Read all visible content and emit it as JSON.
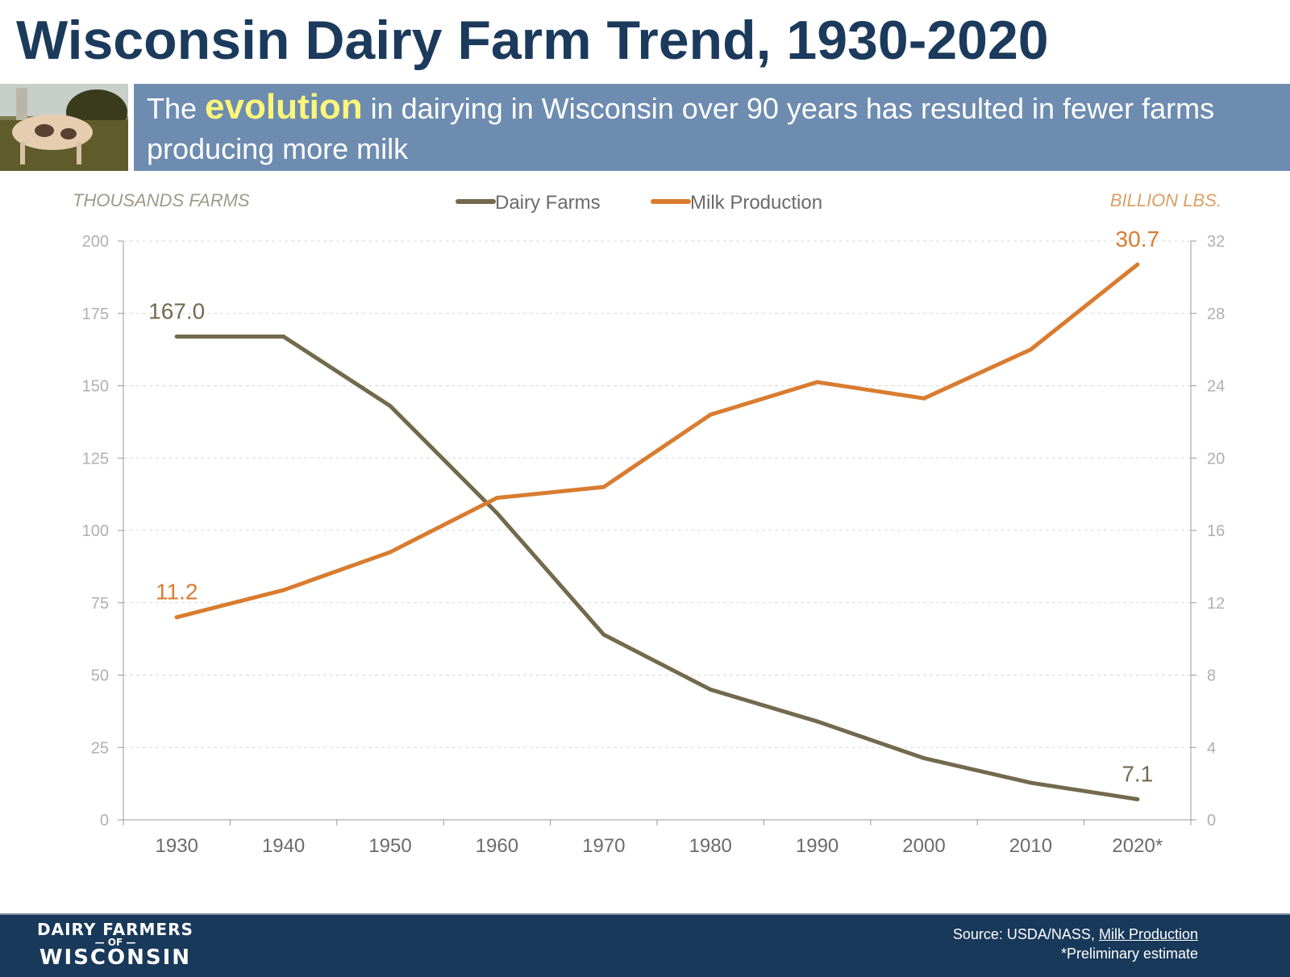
{
  "title": "Wisconsin Dairy Farm Trend, 1930-2020",
  "banner": {
    "prefix": "The",
    "highlight": "evolution",
    "suffix": "in dairying in Wisconsin over 90 years has resulted in fewer farms producing more milk",
    "highlight_color": "#fdf67a"
  },
  "footer": {
    "logo_text": "DAIRY FARMERS OF WISCONSIN",
    "source_prefix": "Source: USDA/NASS,",
    "source_link": "Milk Production",
    "note": "*Preliminary estimate"
  },
  "chart_data": {
    "type": "line",
    "categories": [
      "1930",
      "1940",
      "1950",
      "1960",
      "1970",
      "1980",
      "1990",
      "2000",
      "2010",
      "2020*"
    ],
    "ylabel_left": "THOUSANDS FARMS",
    "ylabel_right": "BILLION LBS.",
    "ylim_left": [
      0,
      200
    ],
    "yticks_left": [
      0,
      25,
      50,
      75,
      100,
      125,
      150,
      175,
      200
    ],
    "ylim_right": [
      0,
      32
    ],
    "yticks_right": [
      0,
      4,
      8,
      12,
      16,
      20,
      24,
      28,
      32
    ],
    "grid": true,
    "legend": "top-center",
    "series": [
      {
        "name": "Dairy Farms",
        "axis": "left",
        "color": "#736a4e",
        "values": [
          167.0,
          167.0,
          143,
          106,
          64,
          45,
          34,
          21.3,
          12.8,
          7.1
        ],
        "labels": [
          {
            "index": 0,
            "text": "167.0"
          },
          {
            "index": 9,
            "text": "7.1"
          }
        ]
      },
      {
        "name": "Milk Production",
        "axis": "right",
        "color": "#d97c30",
        "values": [
          11.2,
          12.7,
          14.8,
          17.8,
          18.4,
          22.4,
          24.2,
          23.3,
          26.0,
          30.7
        ],
        "labels": [
          {
            "index": 0,
            "text": "11.2"
          },
          {
            "index": 9,
            "text": "30.7"
          }
        ]
      }
    ]
  }
}
